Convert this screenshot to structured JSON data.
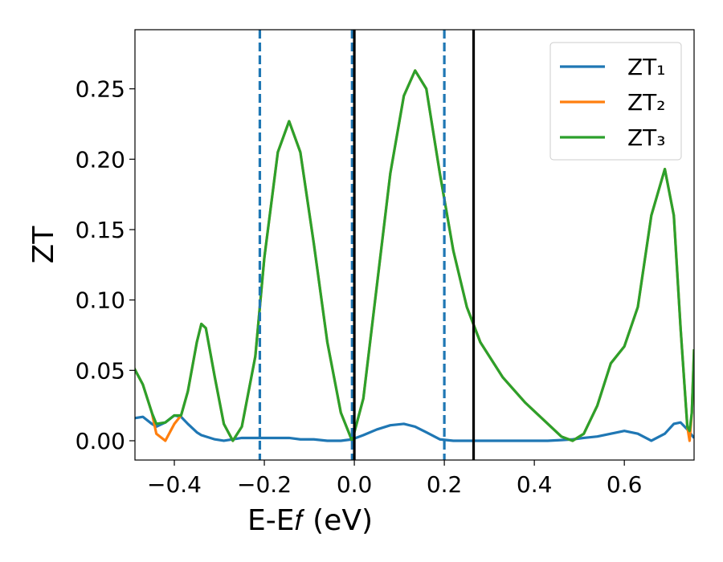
{
  "chart_data": {
    "type": "line",
    "x_label": "E-E𝑓 (eV)",
    "y_label": "ZT",
    "x": [
      -0.49,
      -0.47,
      -0.45,
      -0.44,
      -0.42,
      -0.4,
      -0.385,
      -0.37,
      -0.35,
      -0.34,
      -0.33,
      -0.31,
      -0.29,
      -0.27,
      -0.25,
      -0.22,
      -0.2,
      -0.17,
      -0.145,
      -0.12,
      -0.09,
      -0.06,
      -0.03,
      -0.005,
      0.02,
      0.05,
      0.08,
      0.11,
      0.135,
      0.16,
      0.19,
      0.22,
      0.25,
      0.28,
      0.33,
      0.38,
      0.43,
      0.46,
      0.485,
      0.51,
      0.54,
      0.57,
      0.6,
      0.63,
      0.66,
      0.69,
      0.71,
      0.725,
      0.74,
      0.745,
      0.75,
      0.755
    ],
    "series": [
      {
        "name": "ZT₁",
        "color": "#1f77b4",
        "values": [
          0.016,
          0.017,
          0.012,
          0.01,
          0.013,
          0.018,
          0.017,
          0.012,
          0.006,
          0.004,
          0.003,
          0.001,
          0.0,
          0.001,
          0.002,
          0.002,
          0.002,
          0.002,
          0.002,
          0.001,
          0.001,
          0.0,
          0.0,
          0.001,
          0.004,
          0.008,
          0.011,
          0.012,
          0.01,
          0.006,
          0.001,
          0.0,
          0.0,
          0.0,
          0.0,
          0.0,
          0.0,
          0.0005,
          0.001,
          0.002,
          0.003,
          0.005,
          0.007,
          0.005,
          0.0,
          0.005,
          0.012,
          0.013,
          0.008,
          0.006,
          0.004,
          0.002
        ]
      },
      {
        "name": "ZT₂",
        "color": "#ff7f0e",
        "values": [
          0.052,
          0.04,
          0.02,
          0.005,
          0.0,
          0.012,
          0.018,
          0.035,
          0.07,
          0.083,
          0.08,
          0.045,
          0.012,
          0.0,
          0.01,
          0.06,
          0.13,
          0.205,
          0.227,
          0.205,
          0.14,
          0.07,
          0.02,
          0.0,
          0.03,
          0.11,
          0.19,
          0.245,
          0.263,
          0.25,
          0.19,
          0.135,
          0.095,
          0.07,
          0.045,
          0.027,
          0.012,
          0.003,
          0.0,
          0.005,
          0.025,
          0.055,
          0.067,
          0.095,
          0.16,
          0.193,
          0.16,
          0.08,
          0.01,
          0.0,
          0.02,
          0.065
        ]
      },
      {
        "name": "ZT₃",
        "color": "#2ca02c",
        "values": [
          0.052,
          0.04,
          0.02,
          0.012,
          0.013,
          0.018,
          0.018,
          0.035,
          0.07,
          0.083,
          0.08,
          0.045,
          0.012,
          0.0,
          0.01,
          0.06,
          0.13,
          0.205,
          0.227,
          0.205,
          0.14,
          0.07,
          0.02,
          0.0,
          0.03,
          0.11,
          0.19,
          0.245,
          0.263,
          0.25,
          0.19,
          0.135,
          0.095,
          0.07,
          0.045,
          0.027,
          0.012,
          0.003,
          0.0,
          0.005,
          0.025,
          0.055,
          0.067,
          0.095,
          0.16,
          0.193,
          0.16,
          0.08,
          0.01,
          0.007,
          0.02,
          0.065
        ]
      }
    ],
    "vlines": [
      {
        "x": -0.21,
        "color": "#1f77b4",
        "style": "dashed"
      },
      {
        "x": -0.005,
        "color": "#1f77b4",
        "style": "dashed"
      },
      {
        "x": 0.2,
        "color": "#1f77b4",
        "style": "dashed"
      },
      {
        "x": 0.0,
        "color": "#000000",
        "style": "solid"
      },
      {
        "x": 0.265,
        "color": "#000000",
        "style": "solid"
      }
    ],
    "xlim": [
      -0.4875,
      0.755
    ],
    "ylim": [
      -0.0137,
      0.292
    ],
    "xticks": [
      {
        "value": -0.4,
        "label": "−0.4"
      },
      {
        "value": -0.2,
        "label": "−0.2"
      },
      {
        "value": 0.0,
        "label": "0.0"
      },
      {
        "value": 0.2,
        "label": "0.2"
      },
      {
        "value": 0.4,
        "label": "0.4"
      },
      {
        "value": 0.6,
        "label": "0.6"
      }
    ],
    "yticks": [
      {
        "value": 0,
        "label": "0.00"
      },
      {
        "value": 0.05,
        "label": "0.05"
      },
      {
        "value": 0.1,
        "label": "0.10"
      },
      {
        "value": 0.15,
        "label": "0.15"
      },
      {
        "value": 0.2,
        "label": "0.20"
      },
      {
        "value": 0.25,
        "label": "0.25"
      }
    ],
    "grid": false,
    "legend": "upper right"
  }
}
